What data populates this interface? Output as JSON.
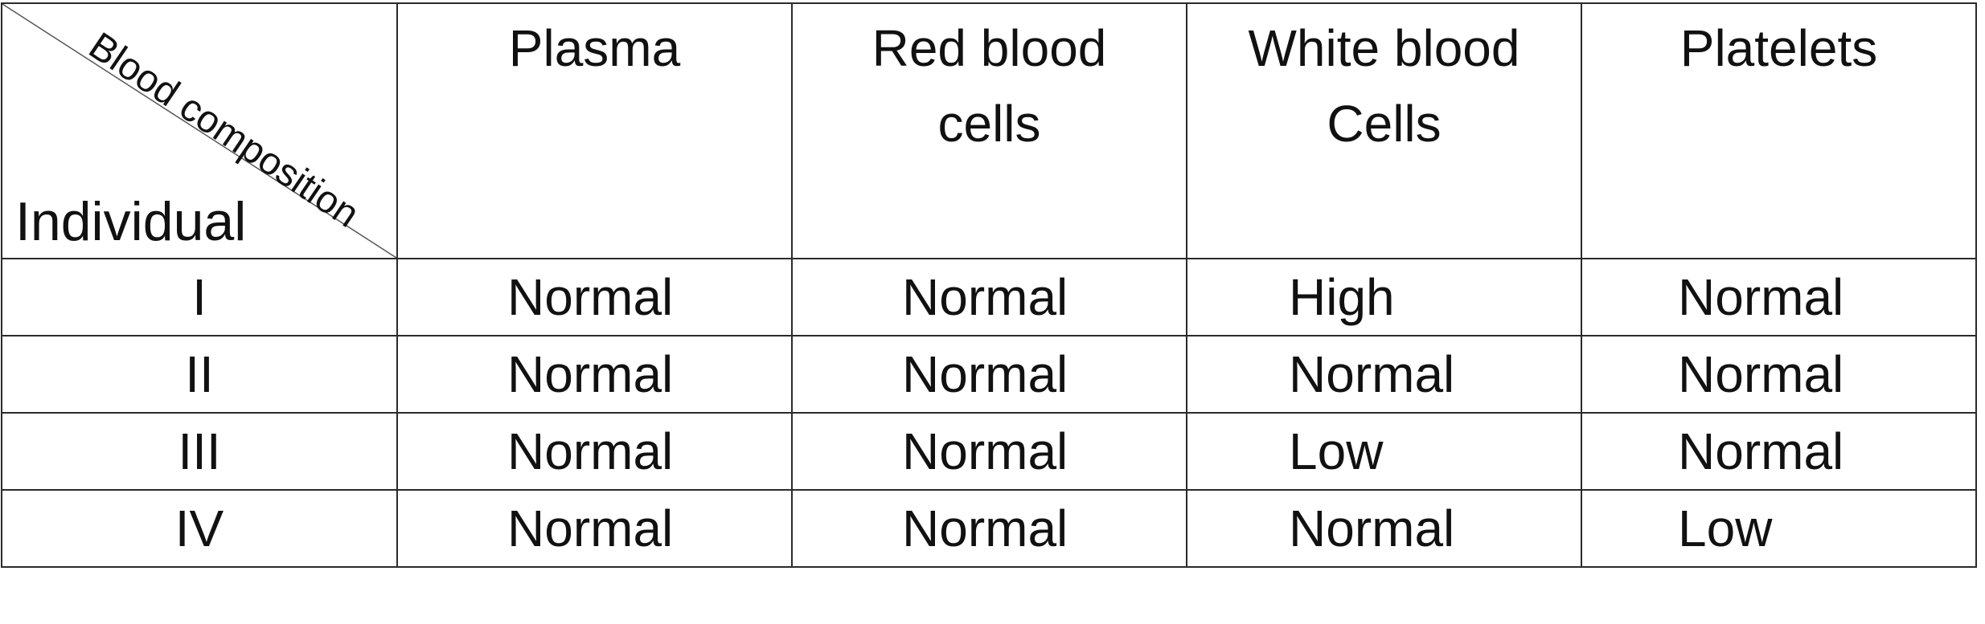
{
  "table": {
    "corner": {
      "top_label": "Blood composition",
      "bottom_label": "Individual"
    },
    "columns": [
      {
        "line1": "Plasma",
        "line2": ""
      },
      {
        "line1": "Red blood",
        "line2": "cells"
      },
      {
        "line1": "White blood",
        "line2": "Cells"
      },
      {
        "line1": "Platelets",
        "line2": ""
      }
    ],
    "rows": [
      {
        "label": "I",
        "values": [
          "Normal",
          "Normal",
          "High",
          "Normal"
        ]
      },
      {
        "label": "II",
        "values": [
          "Normal",
          "Normal",
          "Normal",
          "Normal"
        ]
      },
      {
        "label": "III",
        "values": [
          "Normal",
          "Normal",
          "Low",
          "Normal"
        ]
      },
      {
        "label": "IV",
        "values": [
          "Normal",
          "Normal",
          "Normal",
          "Low"
        ]
      }
    ]
  },
  "colors": {
    "border": "#2a2a2a",
    "text": "#111111",
    "background": "#ffffff"
  }
}
